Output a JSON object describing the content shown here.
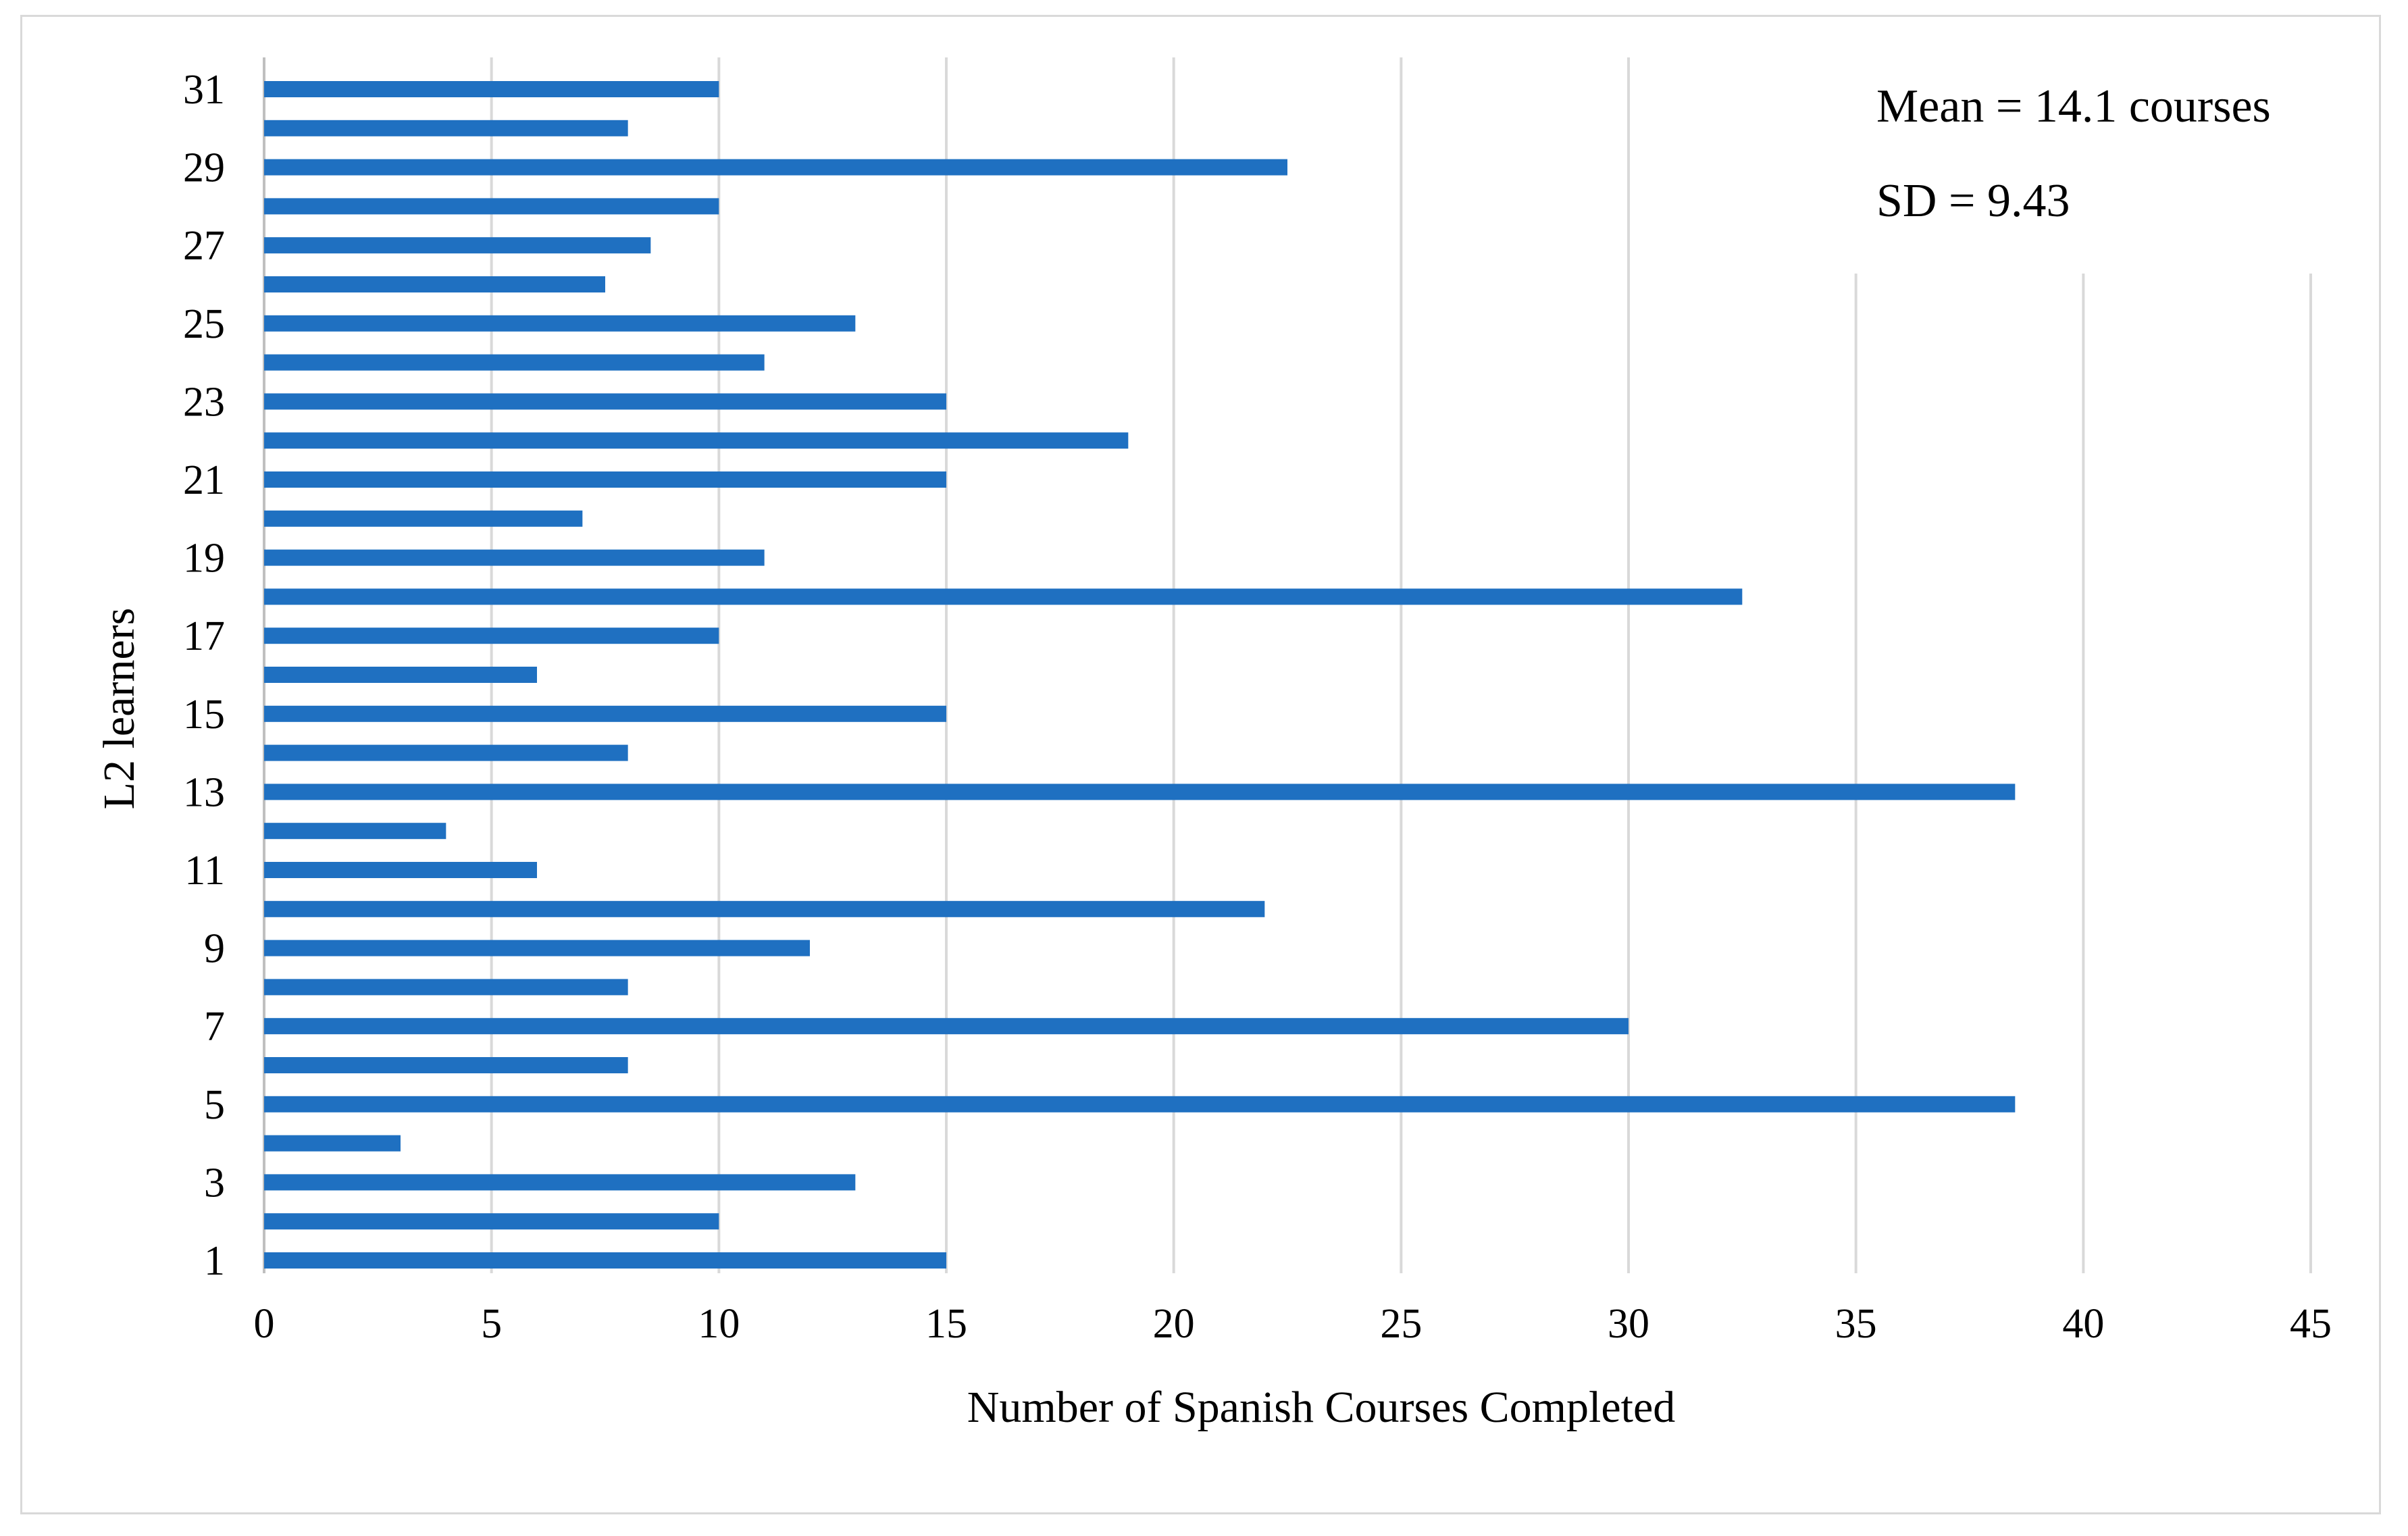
{
  "chart_data": {
    "type": "bar",
    "orientation": "horizontal",
    "categories": [
      "1",
      "2",
      "3",
      "4",
      "5",
      "6",
      "7",
      "8",
      "9",
      "10",
      "11",
      "12",
      "13",
      "14",
      "15",
      "16",
      "17",
      "18",
      "19",
      "20",
      "21",
      "22",
      "23",
      "24",
      "25",
      "26",
      "27",
      "28",
      "29",
      "30",
      "31"
    ],
    "values": [
      15,
      10,
      13,
      3,
      38.5,
      8,
      30,
      8,
      12,
      22,
      6,
      4,
      38.5,
      8,
      15,
      6,
      10,
      32.5,
      11,
      7,
      15,
      19,
      15,
      11,
      13,
      7.5,
      8.5,
      10,
      22.5,
      8,
      10
    ],
    "y_tick_labels": [
      "1",
      "3",
      "5",
      "7",
      "9",
      "11",
      "13",
      "15",
      "17",
      "19",
      "21",
      "23",
      "25",
      "27",
      "29",
      "31"
    ],
    "x_ticks": [
      0,
      5,
      10,
      15,
      20,
      25,
      30,
      35,
      40,
      45
    ],
    "x_tick_labels": [
      "0",
      "5",
      "10",
      "15",
      "20",
      "25",
      "30",
      "35",
      "40",
      "45"
    ],
    "xlim": [
      0,
      45
    ],
    "xlabel": "Number  of Spanish Courses Completed",
    "ylabel": "L2 learners",
    "title": "",
    "grid": "vertical",
    "annotations": [
      {
        "label": "mean",
        "text": "Mean = 14.1 courses"
      },
      {
        "label": "sd",
        "text": "SD = 9.43"
      }
    ],
    "bar_color": "#1f70c1",
    "grid_color": "#d9d9d9"
  }
}
